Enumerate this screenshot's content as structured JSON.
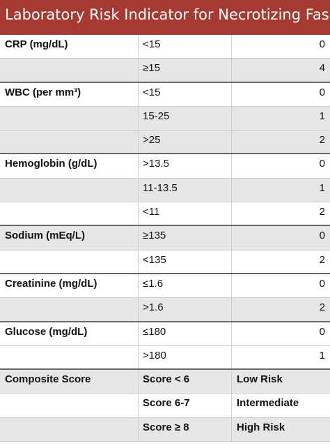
{
  "title": "Laboratory Risk Indicator for Necrotizing Fasciitis",
  "rows": [
    {
      "parameter": "CRP (mg/dL)",
      "range": "<15",
      "points": "0"
    },
    {
      "parameter": "",
      "range": "≥15",
      "points": "4"
    },
    {
      "parameter": "WBC (per mm³)",
      "range": "<15",
      "points": "0"
    },
    {
      "parameter": "",
      "range": "15-25",
      "points": "1"
    },
    {
      "parameter": "",
      "range": ">25",
      "points": "2"
    },
    {
      "parameter": "Hemoglobin (g/dL)",
      "range": ">13.5",
      "points": "0"
    },
    {
      "parameter": "",
      "range": "11-13.5",
      "points": "1"
    },
    {
      "parameter": "",
      "range": "<11",
      "points": "2"
    },
    {
      "parameter": "Sodium (mEq/L)",
      "range": "≥135",
      "points": "0"
    },
    {
      "parameter": "",
      "range": "<135",
      "points": "2"
    },
    {
      "parameter": "Creatinine (mg/dL)",
      "range": "≤1.6",
      "points": "0"
    },
    {
      "parameter": "",
      "range": ">1.6",
      "points": "2"
    },
    {
      "parameter": "Glucose (mg/dL)",
      "range": "≤180",
      "points": "0"
    },
    {
      "parameter": "",
      "range": ">180",
      "points": "1"
    }
  ],
  "composite": [
    {
      "label": "Composite Score",
      "score": "Score < 6",
      "risk": "Low Risk"
    },
    {
      "label": "",
      "score": "Score 6-7",
      "risk": "Intermediate"
    },
    {
      "label": "",
      "score": "Score ≥ 8",
      "risk": "High Risk"
    }
  ],
  "colors": {
    "title_background": "#a63a32",
    "alt_row_background": "#e6e6e6"
  }
}
